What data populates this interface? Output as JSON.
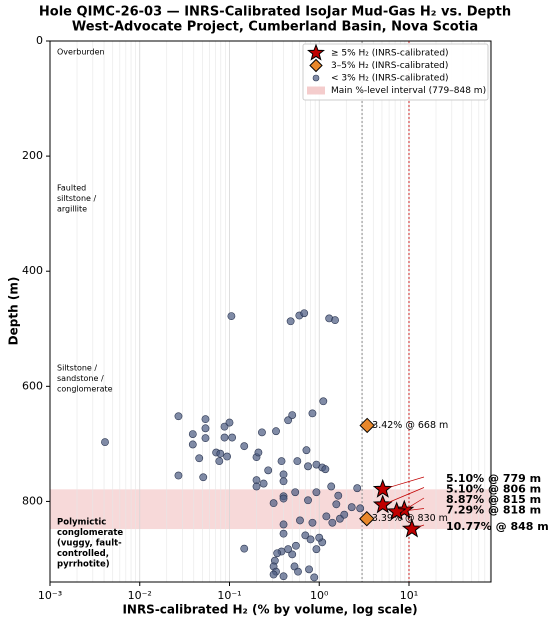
{
  "chart_data": {
    "type": "scatter",
    "title": "Hole QIMC-26-03 — INRS-Calibrated IsoJar Mud-Gas H₂ vs. Depth",
    "subtitle": "West-Advocate Project, Cumberland Basin, Nova Scotia",
    "x_label": "INRS-calibrated H₂ (% by volume, log scale)",
    "y_label": "Depth (m)",
    "x_log": true,
    "y_inverted": true,
    "grid": "x",
    "legend": "upper right",
    "xlim": [
      0.001,
      82
    ],
    "xticks": [
      {
        "value": 0.001,
        "label": "10⁻³"
      },
      {
        "value": 0.01,
        "label": "10⁻²"
      },
      {
        "value": 0.1,
        "label": "10⁻¹"
      },
      {
        "value": 1,
        "label": "10⁰"
      },
      {
        "value": 10,
        "label": "10¹"
      }
    ],
    "ylim": [
      0,
      940
    ],
    "yticks": [
      0,
      200,
      400,
      600,
      800
    ],
    "band": {
      "name": "Main %-level interval (779–848 m)",
      "range": [
        779,
        848
      ],
      "color": "#f4cccc"
    },
    "reference_lines": [
      {
        "x": 3,
        "color": "#888888"
      },
      {
        "x": 10,
        "color": "#cc2222"
      }
    ],
    "zones": [
      {
        "lines": [
          "Overburden"
        ],
        "color": "#555555"
      },
      {
        "lines": [
          "Faulted",
          "siltstone /",
          "argillite"
        ],
        "color": "#555555"
      },
      {
        "lines": [
          "Siltstone /",
          "sandstone /",
          "conglomerate"
        ],
        "color": "#555555"
      },
      {
        "lines": [
          "Polymictic",
          "conglomerate",
          "(vuggy, fault-",
          "controlled,",
          "pyrrhotite)"
        ],
        "color": "#b00000"
      }
    ],
    "series": [
      {
        "name": "≥ 5% H₂ (INRS-calibrated)",
        "marker": "star",
        "color": "#c00000",
        "label_color": "#c00000",
        "x": [
          5.1,
          5.1,
          8.87,
          7.29,
          10.77
        ],
        "y": [
          779,
          806,
          815,
          818,
          848
        ],
        "value_labels": [
          "5.10% @ 779 m",
          "5.10% @ 806 m",
          "8.87% @ 815 m",
          "7.29% @ 818 m",
          "10.77% @ 848 m"
        ]
      },
      {
        "name": "3–5% H₂ (INRS-calibrated)",
        "marker": "diamond",
        "color": "#e8872a",
        "label_color": "#a0520a",
        "x": [
          3.42,
          3.39
        ],
        "y": [
          668,
          830
        ],
        "value_labels": [
          "3.42% @ 668 m",
          "3.39% @ 830 m"
        ]
      },
      {
        "name": "< 3% H₂ (INRS-calibrated)",
        "marker": "circle",
        "color": "#4a5a80",
        "x": [
          0.105,
          0.48,
          0.6,
          0.68,
          1.29,
          1.5,
          0.0041,
          0.027,
          0.027,
          0.039,
          0.039,
          0.054,
          0.054,
          0.054,
          0.046,
          0.051,
          0.071,
          0.077,
          0.079,
          0.088,
          0.1,
          0.088,
          0.107,
          0.094,
          0.146,
          0.2,
          0.21,
          0.2,
          0.2,
          0.24,
          0.27,
          0.23,
          0.33,
          0.38,
          0.4,
          0.4,
          0.4,
          0.4,
          0.45,
          0.5,
          0.31,
          0.57,
          0.54,
          0.72,
          0.75,
          0.84,
          0.93,
          1.08,
          1.17,
          1.36,
          0.93,
          0.75,
          1.11,
          2.65,
          1.63,
          1.55,
          2.86,
          1.2,
          1.4,
          1.7,
          1.9,
          0.84,
          0.61,
          0.7,
          0.8,
          0.93,
          1.08,
          1.0,
          0.55,
          0.5,
          0.45,
          0.4,
          0.4,
          0.38,
          0.34,
          0.32,
          0.31,
          0.33,
          0.31,
          0.4,
          0.53,
          0.58,
          0.77,
          0.88,
          0.146,
          2.3
        ],
        "y": [
          478,
          487,
          477,
          473,
          482,
          485,
          697,
          652,
          755,
          683,
          701,
          657,
          673,
          690,
          725,
          758,
          715,
          730,
          717,
          670,
          663,
          689,
          689,
          722,
          704,
          723,
          715,
          763,
          774,
          769,
          746,
          680,
          678,
          730,
          753,
          765,
          791,
          795,
          659,
          650,
          803,
          730,
          784,
          711,
          739,
          647,
          736,
          741,
          744,
          774,
          784,
          798,
          626,
          777,
          790,
          805,
          812,
          826,
          837,
          830,
          823,
          837,
          833,
          859,
          866,
          883,
          871,
          863,
          877,
          892,
          883,
          840,
          856,
          887,
          890,
          903,
          913,
          922,
          927,
          930,
          913,
          922,
          918,
          932,
          882,
          810
        ]
      }
    ]
  }
}
